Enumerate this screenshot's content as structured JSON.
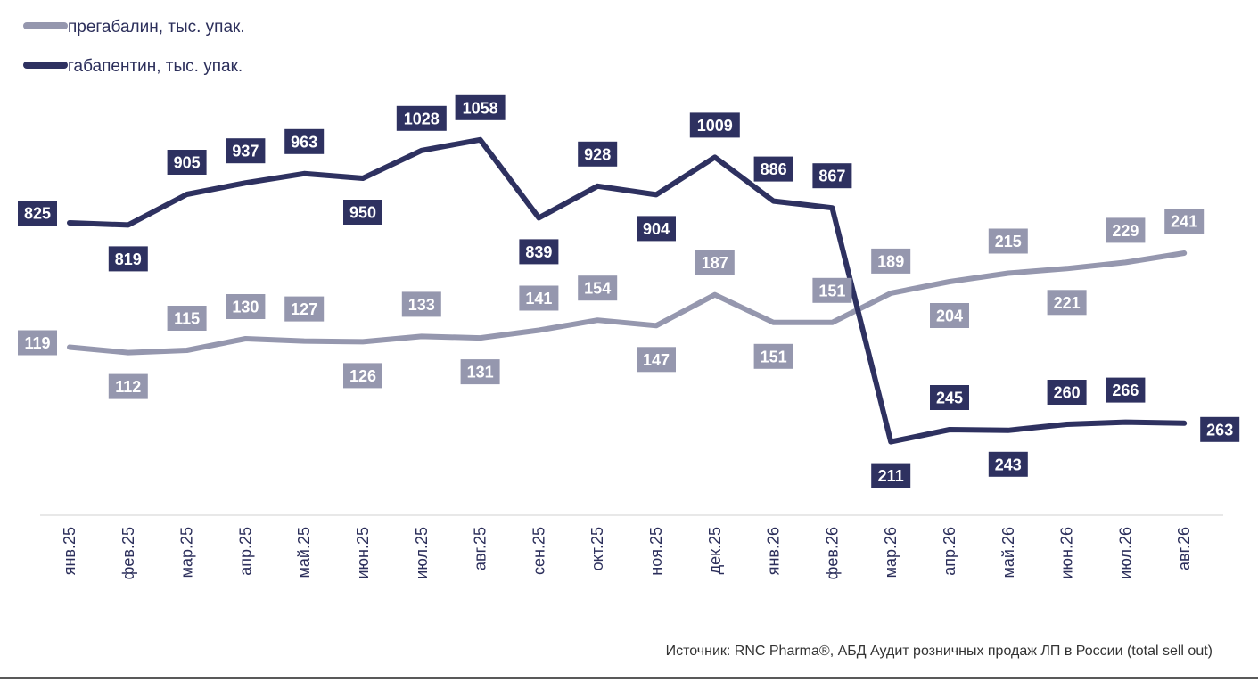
{
  "chart_data": {
    "type": "line",
    "title": "",
    "xlabel": "",
    "ylabel": "",
    "categories": [
      "янв.25",
      "фев.25",
      "мар.25",
      "апр.25",
      "май.25",
      "июн.25",
      "июл.25",
      "авг.25",
      "сен.25",
      "окт.25",
      "ноя.25",
      "дек.25",
      "янв.26",
      "фев.26",
      "мар.26",
      "апр.26",
      "май.26",
      "июн.26",
      "июл.26",
      "авг.26"
    ],
    "series": [
      {
        "name": "прегабалин, тыс. упак.",
        "color": "#9597ae",
        "values": [
          119,
          112,
          115,
          130,
          127,
          126,
          133,
          131,
          141,
          154,
          147,
          187,
          151,
          151,
          189,
          204,
          215,
          221,
          229,
          241
        ]
      },
      {
        "name": "габапентин, тыс. упак.",
        "color": "#2e3160",
        "values": [
          825,
          819,
          905,
          937,
          963,
          950,
          1028,
          1058,
          839,
          928,
          904,
          1009,
          886,
          867,
          211,
          245,
          243,
          260,
          266,
          263
        ]
      }
    ],
    "legend_position": "top-left",
    "grid": false,
    "source": "Источник: RNC Pharma®, АБД Аудит розничных продаж ЛП в России (total sell out)"
  }
}
